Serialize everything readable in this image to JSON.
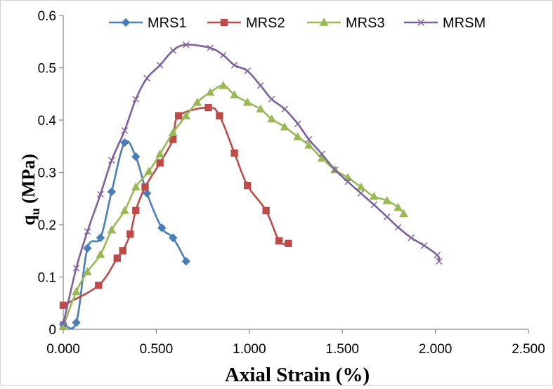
{
  "chart_data": {
    "type": "line",
    "xlabel": "Axial Strain (%)",
    "ylabel_main": "q",
    "ylabel_sub": "u",
    "ylabel_units": " (MPa)",
    "xlim": [
      0,
      2.5
    ],
    "ylim": [
      0,
      0.6
    ],
    "x_ticks": [
      0,
      0.5,
      1.0,
      1.5,
      2.0,
      2.5
    ],
    "x_tick_labels": [
      "0.000",
      "0.500",
      "1.000",
      "1.500",
      "2.000",
      "2.500"
    ],
    "y_ticks": [
      0,
      0.1,
      0.2,
      0.3,
      0.4,
      0.5,
      0.6
    ],
    "y_tick_labels": [
      "0",
      "0.1",
      "0.2",
      "0.3",
      "0.4",
      "0.5",
      "0.6"
    ],
    "grid": false,
    "legend_position": "top",
    "series": [
      {
        "name": "MRS1",
        "color": "#4a7ebb",
        "marker": "diamond",
        "points": [
          [
            0.0,
            0.01
          ],
          [
            0.07,
            0.013
          ],
          [
            0.13,
            0.155
          ],
          [
            0.2,
            0.175
          ],
          [
            0.26,
            0.263
          ],
          [
            0.33,
            0.357
          ],
          [
            0.39,
            0.33
          ],
          [
            0.45,
            0.26
          ],
          [
            0.53,
            0.194
          ],
          [
            0.59,
            0.175
          ],
          [
            0.66,
            0.13
          ]
        ]
      },
      {
        "name": "MRS2",
        "color": "#be4b48",
        "marker": "square",
        "points": [
          [
            0.0,
            0.046
          ],
          [
            0.19,
            0.084
          ],
          [
            0.29,
            0.136
          ],
          [
            0.32,
            0.15
          ],
          [
            0.36,
            0.182
          ],
          [
            0.39,
            0.227
          ],
          [
            0.44,
            0.272
          ],
          [
            0.52,
            0.318
          ],
          [
            0.59,
            0.363
          ],
          [
            0.62,
            0.408
          ],
          [
            0.78,
            0.424
          ],
          [
            0.84,
            0.408
          ],
          [
            0.92,
            0.337
          ],
          [
            0.99,
            0.275
          ],
          [
            1.09,
            0.227
          ],
          [
            1.16,
            0.169
          ],
          [
            1.21,
            0.164
          ]
        ]
      },
      {
        "name": "MRS3",
        "color": "#98b954",
        "marker": "triangle",
        "points": [
          [
            0.0,
            0.005
          ],
          [
            0.07,
            0.072
          ],
          [
            0.13,
            0.11
          ],
          [
            0.2,
            0.143
          ],
          [
            0.26,
            0.19
          ],
          [
            0.33,
            0.227
          ],
          [
            0.39,
            0.272
          ],
          [
            0.46,
            0.302
          ],
          [
            0.52,
            0.335
          ],
          [
            0.59,
            0.376
          ],
          [
            0.66,
            0.408
          ],
          [
            0.72,
            0.434
          ],
          [
            0.79,
            0.453
          ],
          [
            0.86,
            0.466
          ],
          [
            0.92,
            0.448
          ],
          [
            0.99,
            0.434
          ],
          [
            1.06,
            0.421
          ],
          [
            1.12,
            0.402
          ],
          [
            1.19,
            0.387
          ],
          [
            1.26,
            0.368
          ],
          [
            1.32,
            0.352
          ],
          [
            1.39,
            0.327
          ],
          [
            1.46,
            0.305
          ],
          [
            1.53,
            0.29
          ],
          [
            1.6,
            0.272
          ],
          [
            1.67,
            0.254
          ],
          [
            1.74,
            0.246
          ],
          [
            1.8,
            0.233
          ],
          [
            1.83,
            0.221
          ]
        ]
      },
      {
        "name": "MRSM",
        "color": "#7d60a0",
        "marker": "x",
        "points": [
          [
            0.0,
            0.01
          ],
          [
            0.07,
            0.117
          ],
          [
            0.13,
            0.187
          ],
          [
            0.2,
            0.258
          ],
          [
            0.26,
            0.323
          ],
          [
            0.33,
            0.38
          ],
          [
            0.39,
            0.44
          ],
          [
            0.45,
            0.48
          ],
          [
            0.52,
            0.505
          ],
          [
            0.59,
            0.533
          ],
          [
            0.66,
            0.544
          ],
          [
            0.79,
            0.538
          ],
          [
            0.86,
            0.524
          ],
          [
            0.92,
            0.505
          ],
          [
            0.99,
            0.494
          ],
          [
            1.06,
            0.466
          ],
          [
            1.12,
            0.44
          ],
          [
            1.19,
            0.421
          ],
          [
            1.26,
            0.393
          ],
          [
            1.32,
            0.363
          ],
          [
            1.39,
            0.335
          ],
          [
            1.46,
            0.305
          ],
          [
            1.53,
            0.282
          ],
          [
            1.6,
            0.26
          ],
          [
            1.67,
            0.238
          ],
          [
            1.74,
            0.215
          ],
          [
            1.8,
            0.195
          ],
          [
            1.87,
            0.175
          ],
          [
            1.94,
            0.16
          ],
          [
            2.01,
            0.142
          ],
          [
            2.02,
            0.13
          ]
        ]
      }
    ]
  }
}
